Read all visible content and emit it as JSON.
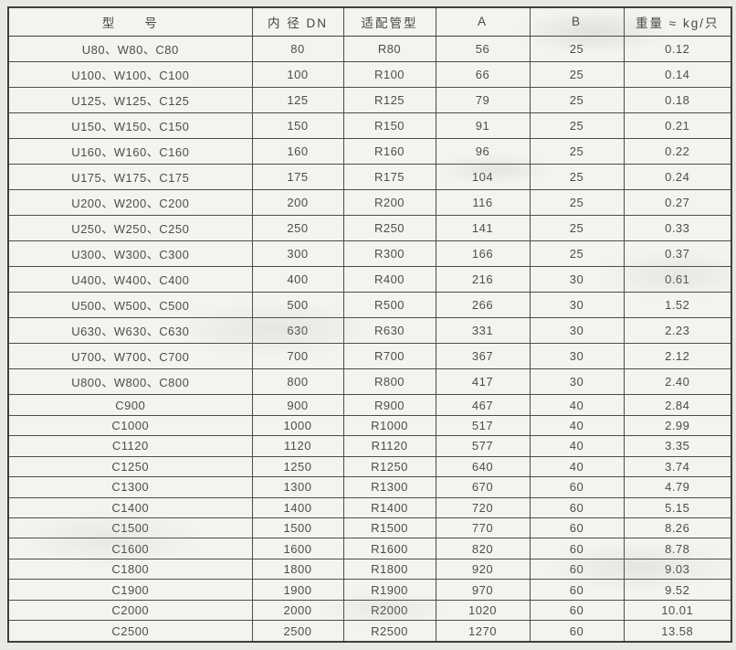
{
  "colors": {
    "paper": "#e9e8e4",
    "cell_background": "#f4f3f0",
    "border": "#3e3e3c",
    "text": "#4d4d4d"
  },
  "table": {
    "headers": [
      "型　　号",
      "内 径 DN",
      "适配管型",
      "A",
      "B",
      "重量 ≈ kg/只"
    ],
    "rows": [
      [
        "U80、W80、C80",
        "80",
        "R80",
        "56",
        "25",
        "0.12"
      ],
      [
        "U100、W100、C100",
        "100",
        "R100",
        "66",
        "25",
        "0.14"
      ],
      [
        "U125、W125、C125",
        "125",
        "R125",
        "79",
        "25",
        "0.18"
      ],
      [
        "U150、W150、C150",
        "150",
        "R150",
        "91",
        "25",
        "0.21"
      ],
      [
        "U160、W160、C160",
        "160",
        "R160",
        "96",
        "25",
        "0.22"
      ],
      [
        "U175、W175、C175",
        "175",
        "R175",
        "104",
        "25",
        "0.24"
      ],
      [
        "U200、W200、C200",
        "200",
        "R200",
        "116",
        "25",
        "0.27"
      ],
      [
        "U250、W250、C250",
        "250",
        "R250",
        "141",
        "25",
        "0.33"
      ],
      [
        "U300、W300、C300",
        "300",
        "R300",
        "166",
        "25",
        "0.37"
      ],
      [
        "U400、W400、C400",
        "400",
        "R400",
        "216",
        "30",
        "0.61"
      ],
      [
        "U500、W500、C500",
        "500",
        "R500",
        "266",
        "30",
        "1.52"
      ],
      [
        "U630、W630、C630",
        "630",
        "R630",
        "331",
        "30",
        "2.23"
      ],
      [
        "U700、W700、C700",
        "700",
        "R700",
        "367",
        "30",
        "2.12"
      ],
      [
        "U800、W800、C800",
        "800",
        "R800",
        "417",
        "30",
        "2.40"
      ],
      [
        "C900",
        "900",
        "R900",
        "467",
        "40",
        "2.84"
      ],
      [
        "C1000",
        "1000",
        "R1000",
        "517",
        "40",
        "2.99"
      ],
      [
        "C1120",
        "1120",
        "R1120",
        "577",
        "40",
        "3.35"
      ],
      [
        "C1250",
        "1250",
        "R1250",
        "640",
        "40",
        "3.74"
      ],
      [
        "C1300",
        "1300",
        "R1300",
        "670",
        "60",
        "4.79"
      ],
      [
        "C1400",
        "1400",
        "R1400",
        "720",
        "60",
        "5.15"
      ],
      [
        "C1500",
        "1500",
        "R1500",
        "770",
        "60",
        "8.26"
      ],
      [
        "C1600",
        "1600",
        "R1600",
        "820",
        "60",
        "8.78"
      ],
      [
        "C1800",
        "1800",
        "R1800",
        "920",
        "60",
        "9.03"
      ],
      [
        "C1900",
        "1900",
        "R1900",
        "970",
        "60",
        "9.52"
      ],
      [
        "C2000",
        "2000",
        "R2000",
        "1020",
        "60",
        "10.01"
      ],
      [
        "C2500",
        "2500",
        "R2500",
        "1270",
        "60",
        "13.58"
      ]
    ]
  }
}
